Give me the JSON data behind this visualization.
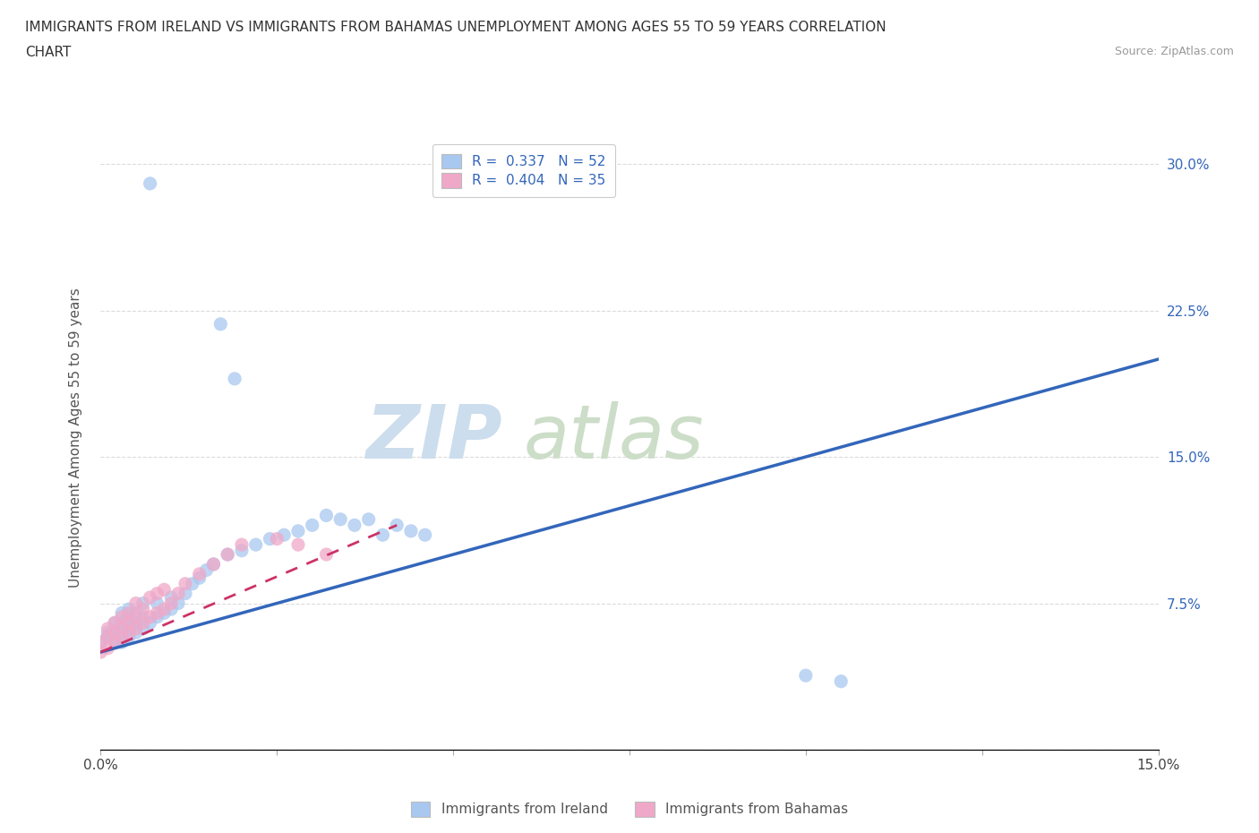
{
  "title_line1": "IMMIGRANTS FROM IRELAND VS IMMIGRANTS FROM BAHAMAS UNEMPLOYMENT AMONG AGES 55 TO 59 YEARS CORRELATION",
  "title_line2": "CHART",
  "source_text": "Source: ZipAtlas.com",
  "ylabel": "Unemployment Among Ages 55 to 59 years",
  "xlim": [
    0.0,
    0.15
  ],
  "ylim": [
    0.0,
    0.32
  ],
  "xticks": [
    0.0,
    0.025,
    0.05,
    0.075,
    0.1,
    0.125,
    0.15
  ],
  "xticklabels": [
    "0.0%",
    "",
    "",
    "",
    "",
    "",
    "15.0%"
  ],
  "ytick_positions": [
    0.0,
    0.075,
    0.15,
    0.225,
    0.3
  ],
  "yticklabels_right": [
    "",
    "7.5%",
    "15.0%",
    "22.5%",
    "30.0%"
  ],
  "ireland_color": "#a8c8f0",
  "bahamas_color": "#f0a8c8",
  "ireland_line_color": "#3366bb",
  "bahamas_line_color": "#cc3366",
  "legend_R_ireland": "R =  0.337",
  "legend_N_ireland": "N = 52",
  "legend_R_bahamas": "R =  0.404",
  "legend_N_bahamas": "N = 35",
  "legend_label_ireland": "Immigrants from Ireland",
  "legend_label_bahamas": "Immigrants from Bahamas",
  "background_color": "#ffffff",
  "grid_color": "#cccccc",
  "ireland_line_x0": 0.0,
  "ireland_line_x1": 0.15,
  "ireland_line_y0": 0.05,
  "ireland_line_y1": 0.2,
  "bahamas_line_x0": 0.0,
  "bahamas_line_x1": 0.042,
  "bahamas_line_y0": 0.05,
  "bahamas_line_y1": 0.115,
  "ireland_x": [
    0.0,
    0.001,
    0.001,
    0.002,
    0.002,
    0.002,
    0.003,
    0.003,
    0.003,
    0.003,
    0.004,
    0.004,
    0.004,
    0.004,
    0.005,
    0.005,
    0.005,
    0.006,
    0.006,
    0.006,
    0.007,
    0.007,
    0.008,
    0.008,
    0.009,
    0.01,
    0.01,
    0.011,
    0.012,
    0.013,
    0.014,
    0.015,
    0.016,
    0.018,
    0.02,
    0.022,
    0.024,
    0.026,
    0.028,
    0.03,
    0.032,
    0.034,
    0.036,
    0.038,
    0.04,
    0.042,
    0.044,
    0.046,
    0.1,
    0.105,
    0.017,
    0.019
  ],
  "ireland_y": [
    0.055,
    0.058,
    0.06,
    0.055,
    0.06,
    0.065,
    0.055,
    0.06,
    0.065,
    0.07,
    0.058,
    0.062,
    0.068,
    0.072,
    0.06,
    0.065,
    0.07,
    0.062,
    0.068,
    0.075,
    0.065,
    0.29,
    0.068,
    0.075,
    0.07,
    0.072,
    0.078,
    0.075,
    0.08,
    0.085,
    0.088,
    0.092,
    0.095,
    0.1,
    0.102,
    0.105,
    0.108,
    0.11,
    0.112,
    0.115,
    0.12,
    0.118,
    0.115,
    0.118,
    0.11,
    0.115,
    0.112,
    0.11,
    0.038,
    0.035,
    0.218,
    0.19
  ],
  "bahamas_x": [
    0.0,
    0.0,
    0.001,
    0.001,
    0.001,
    0.002,
    0.002,
    0.002,
    0.003,
    0.003,
    0.003,
    0.004,
    0.004,
    0.004,
    0.005,
    0.005,
    0.005,
    0.006,
    0.006,
    0.007,
    0.007,
    0.008,
    0.008,
    0.009,
    0.009,
    0.01,
    0.011,
    0.012,
    0.014,
    0.016,
    0.018,
    0.02,
    0.025,
    0.028,
    0.032
  ],
  "bahamas_y": [
    0.05,
    0.055,
    0.052,
    0.058,
    0.062,
    0.055,
    0.06,
    0.065,
    0.058,
    0.063,
    0.068,
    0.06,
    0.065,
    0.07,
    0.062,
    0.068,
    0.075,
    0.065,
    0.072,
    0.068,
    0.078,
    0.07,
    0.08,
    0.072,
    0.082,
    0.075,
    0.08,
    0.085,
    0.09,
    0.095,
    0.1,
    0.105,
    0.108,
    0.105,
    0.1
  ]
}
